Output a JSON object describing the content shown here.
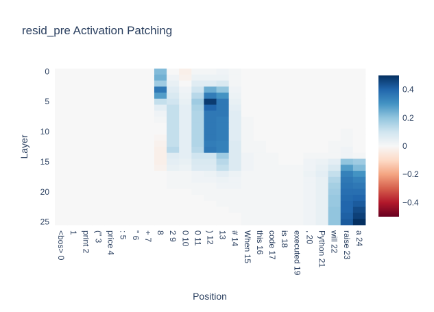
{
  "chart_data": {
    "type": "heatmap",
    "title": "resid_pre Activation Patching",
    "xlabel": "Position",
    "ylabel": "Layer",
    "x_labels": [
      "<bos> 0",
      "1",
      "print 2",
      "(\" 3",
      "price 4",
      ": 5",
      "\" 6",
      "+ 7",
      "8",
      "2 9",
      "0 10",
      "0 11",
      ") 12",
      "13",
      "# 14",
      "When 15",
      "this 16",
      "code 17",
      "is 18",
      "executed 19",
      ", 20",
      "Python 21",
      "will 22",
      "raise 23",
      "a 24"
    ],
    "y_ticks": [
      0,
      5,
      10,
      15,
      20,
      25
    ],
    "n_layers": 26,
    "zmin": -0.5,
    "zmax": 0.5,
    "colorbar_ticks": [
      0.4,
      0.2,
      0,
      -0.2,
      -0.4
    ],
    "colorbar_tick_labels": [
      "0.4",
      "0.2",
      "0",
      "−0.2",
      "−0.4"
    ],
    "colorscale": "RdBu",
    "z_description": "rows = layers 0-25, columns = positions 0-24",
    "z": [
      [
        0.0,
        0.0,
        0.0,
        0.0,
        0.0,
        0.0,
        0.0,
        0.0,
        0.22,
        0.0,
        -0.03,
        0.01,
        0.01,
        0.02,
        0.01,
        0.0,
        0.0,
        0.0,
        0.0,
        0.0,
        0.0,
        0.0,
        0.0,
        0.0,
        0.0
      ],
      [
        0.0,
        0.0,
        0.0,
        0.0,
        0.0,
        0.0,
        0.0,
        0.0,
        0.24,
        0.02,
        -0.02,
        0.03,
        0.03,
        0.03,
        0.01,
        0.0,
        0.0,
        0.0,
        0.0,
        0.0,
        0.0,
        0.0,
        0.0,
        0.0,
        0.0
      ],
      [
        0.0,
        0.0,
        0.0,
        0.0,
        0.0,
        0.0,
        0.0,
        0.0,
        0.18,
        0.04,
        0.0,
        0.06,
        0.06,
        0.08,
        0.01,
        0.0,
        0.0,
        0.0,
        0.0,
        0.0,
        0.0,
        0.0,
        0.0,
        0.0,
        0.0
      ],
      [
        0.0,
        0.0,
        0.0,
        0.0,
        0.0,
        0.0,
        0.0,
        0.0,
        0.36,
        0.06,
        0.02,
        0.1,
        0.25,
        0.2,
        0.02,
        0.0,
        0.0,
        0.0,
        0.0,
        0.0,
        0.0,
        0.0,
        0.0,
        0.0,
        0.0
      ],
      [
        0.0,
        0.0,
        0.0,
        0.0,
        0.0,
        0.0,
        0.0,
        0.0,
        0.28,
        0.08,
        0.03,
        0.14,
        0.35,
        0.3,
        0.03,
        0.0,
        0.0,
        0.0,
        0.0,
        0.0,
        0.0,
        0.0,
        0.0,
        0.0,
        0.0
      ],
      [
        0.0,
        0.0,
        0.0,
        0.0,
        0.0,
        0.0,
        0.0,
        0.0,
        0.12,
        0.1,
        0.04,
        0.18,
        0.48,
        0.36,
        0.04,
        0.0,
        0.0,
        0.0,
        0.0,
        0.0,
        0.0,
        0.0,
        0.0,
        0.0,
        0.0
      ],
      [
        0.0,
        0.0,
        0.0,
        0.0,
        0.0,
        0.0,
        0.0,
        0.0,
        0.05,
        0.12,
        0.05,
        0.16,
        0.4,
        0.36,
        0.05,
        0.0,
        0.0,
        0.0,
        0.0,
        0.0,
        0.0,
        0.0,
        0.0,
        0.0,
        0.0
      ],
      [
        0.0,
        0.0,
        0.0,
        0.0,
        0.0,
        0.0,
        0.0,
        0.0,
        0.02,
        0.12,
        0.05,
        0.15,
        0.36,
        0.36,
        0.06,
        0.0,
        0.0,
        0.0,
        0.0,
        0.0,
        0.0,
        0.0,
        0.0,
        0.0,
        0.0
      ],
      [
        0.0,
        0.0,
        0.0,
        0.0,
        0.0,
        0.0,
        0.0,
        0.0,
        0.01,
        0.12,
        0.05,
        0.15,
        0.36,
        0.35,
        0.06,
        0.01,
        0.0,
        0.0,
        0.0,
        0.0,
        0.0,
        0.0,
        0.0,
        0.0,
        0.0
      ],
      [
        0.0,
        0.0,
        0.0,
        0.0,
        0.0,
        0.0,
        0.0,
        0.0,
        0.0,
        0.12,
        0.05,
        0.15,
        0.36,
        0.35,
        0.06,
        0.01,
        0.0,
        0.0,
        0.0,
        0.0,
        0.0,
        0.0,
        0.0,
        0.0,
        0.0
      ],
      [
        0.0,
        0.0,
        0.0,
        0.0,
        0.0,
        0.0,
        0.0,
        0.0,
        0.0,
        0.12,
        0.05,
        0.15,
        0.36,
        0.35,
        0.06,
        0.01,
        0.0,
        0.0,
        0.0,
        0.0,
        0.0,
        0.0,
        0.0,
        0.01,
        0.0
      ],
      [
        0.0,
        0.0,
        0.0,
        0.0,
        0.0,
        0.0,
        0.0,
        0.0,
        -0.01,
        0.12,
        0.05,
        0.15,
        0.36,
        0.35,
        0.06,
        0.01,
        0.0,
        0.0,
        0.0,
        0.0,
        0.0,
        0.0,
        0.0,
        0.01,
        0.0
      ],
      [
        0.0,
        0.0,
        0.0,
        0.0,
        0.0,
        0.0,
        0.0,
        0.0,
        -0.02,
        0.12,
        0.05,
        0.15,
        0.35,
        0.34,
        0.07,
        0.01,
        0.01,
        0.0,
        0.0,
        0.0,
        0.0,
        0.0,
        0.01,
        0.01,
        0.0
      ],
      [
        0.0,
        0.0,
        0.0,
        0.0,
        0.0,
        0.0,
        0.0,
        0.0,
        -0.03,
        0.14,
        0.05,
        0.14,
        0.36,
        0.34,
        0.07,
        0.01,
        0.01,
        0.0,
        0.0,
        0.0,
        0.0,
        0.0,
        0.01,
        0.02,
        0.0
      ],
      [
        0.0,
        0.0,
        0.0,
        0.0,
        0.0,
        0.0,
        0.0,
        0.0,
        -0.03,
        0.06,
        0.05,
        0.1,
        0.1,
        0.18,
        0.07,
        0.02,
        0.01,
        0.01,
        0.0,
        0.0,
        0.01,
        0.01,
        0.01,
        0.02,
        0.01
      ],
      [
        0.0,
        0.0,
        0.0,
        0.0,
        0.0,
        0.0,
        0.0,
        0.0,
        -0.03,
        0.05,
        0.04,
        0.08,
        0.08,
        0.14,
        0.07,
        0.02,
        0.01,
        0.01,
        0.0,
        0.0,
        0.02,
        0.03,
        0.05,
        0.2,
        0.18
      ],
      [
        0.0,
        0.0,
        0.0,
        0.0,
        0.0,
        0.0,
        0.0,
        0.0,
        -0.02,
        0.04,
        0.03,
        0.07,
        0.07,
        0.12,
        0.07,
        0.02,
        0.01,
        0.01,
        0.01,
        0.01,
        0.02,
        0.04,
        0.08,
        0.28,
        0.22
      ],
      [
        0.0,
        0.0,
        0.0,
        0.0,
        0.0,
        0.0,
        0.0,
        0.0,
        0.0,
        0.01,
        0.01,
        0.02,
        0.03,
        0.05,
        0.03,
        0.01,
        0.01,
        0.01,
        0.01,
        0.01,
        0.03,
        0.05,
        0.12,
        0.34,
        0.3
      ],
      [
        0.0,
        0.0,
        0.0,
        0.0,
        0.0,
        0.0,
        0.0,
        0.0,
        0.0,
        0.01,
        0.01,
        0.02,
        0.02,
        0.03,
        0.02,
        0.01,
        0.01,
        0.01,
        0.01,
        0.01,
        0.02,
        0.04,
        0.15,
        0.36,
        0.34
      ],
      [
        0.0,
        0.0,
        0.0,
        0.0,
        0.0,
        0.0,
        0.0,
        0.0,
        0.0,
        0.01,
        0.01,
        0.01,
        0.01,
        0.02,
        0.02,
        0.01,
        0.01,
        0.01,
        0.01,
        0.01,
        0.02,
        0.04,
        0.17,
        0.37,
        0.36
      ],
      [
        0.0,
        0.0,
        0.0,
        0.0,
        0.0,
        0.0,
        0.0,
        0.0,
        0.0,
        0.0,
        0.0,
        0.01,
        0.01,
        0.01,
        0.01,
        0.01,
        0.01,
        0.01,
        0.01,
        0.01,
        0.02,
        0.04,
        0.18,
        0.38,
        0.38
      ],
      [
        0.0,
        0.0,
        0.0,
        0.0,
        0.0,
        0.0,
        0.0,
        0.0,
        0.0,
        0.0,
        0.0,
        0.0,
        0.01,
        0.01,
        0.01,
        0.01,
        0.01,
        0.01,
        0.01,
        0.01,
        0.02,
        0.04,
        0.19,
        0.39,
        0.4
      ],
      [
        0.0,
        0.0,
        0.0,
        0.0,
        0.0,
        0.0,
        0.0,
        0.0,
        0.0,
        0.0,
        0.0,
        0.0,
        0.0,
        0.01,
        0.01,
        0.01,
        0.01,
        0.01,
        0.01,
        0.01,
        0.02,
        0.04,
        0.19,
        0.4,
        0.42
      ],
      [
        0.0,
        0.0,
        0.0,
        0.0,
        0.0,
        0.0,
        0.0,
        0.0,
        0.0,
        0.0,
        0.0,
        0.0,
        0.0,
        0.0,
        0.01,
        0.01,
        0.01,
        0.01,
        0.01,
        0.01,
        0.02,
        0.04,
        0.2,
        0.4,
        0.45
      ],
      [
        0.0,
        0.0,
        0.0,
        0.0,
        0.0,
        0.0,
        0.0,
        0.0,
        0.0,
        0.0,
        0.0,
        0.0,
        0.0,
        0.0,
        0.0,
        0.01,
        0.01,
        0.01,
        0.01,
        0.01,
        0.02,
        0.04,
        0.2,
        0.41,
        0.47
      ],
      [
        0.0,
        0.0,
        0.0,
        0.0,
        0.0,
        0.0,
        0.0,
        0.0,
        0.0,
        0.0,
        0.0,
        0.0,
        0.0,
        0.0,
        0.0,
        0.01,
        0.01,
        0.01,
        0.01,
        0.01,
        0.02,
        0.04,
        0.2,
        0.42,
        0.5
      ]
    ]
  }
}
